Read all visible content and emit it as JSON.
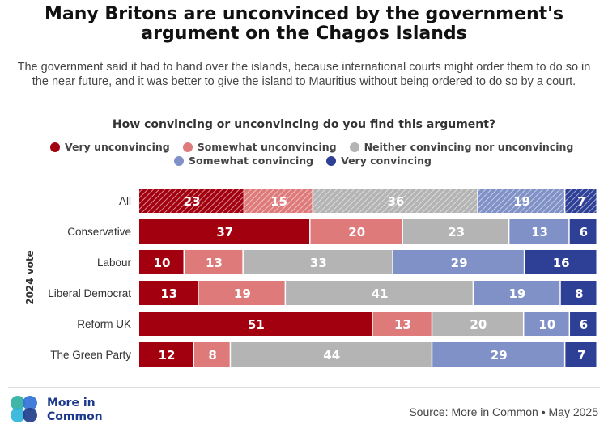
{
  "title_line1": "Many Britons are unconvinced by the government's",
  "title_line2": "argument on the Chagos Islands",
  "subtitle": "The government said it had to hand over the islands, because international courts might order them to do so in the near future, and it was better to give the island to Mauritius without being ordered to do so by a court.",
  "question": "How convincing or unconvincing do you find this argument?",
  "logo": {
    "line1": "More in",
    "line2": "Common"
  },
  "source": "Source: More in Common • May 2025",
  "colors": {
    "very_unconvincing": "#a3000f",
    "somewhat_unconvincing": "#de7a7a",
    "neither": "#b4b4b4",
    "somewhat_convincing": "#8091c7",
    "very_convincing": "#2e3f96"
  },
  "chart_data": {
    "type": "bar",
    "orientation": "horizontal-stacked-100",
    "title": "How convincing or unconvincing do you find this argument?",
    "ylabel": "2024 vote",
    "categories": [
      "All",
      "Conservative",
      "Labour",
      "Liberal Democrat",
      "Reform UK",
      "The Green Party"
    ],
    "series": [
      {
        "name": "Very unconvincing",
        "color": "#a3000f",
        "values": [
          23,
          37,
          10,
          13,
          51,
          12
        ]
      },
      {
        "name": "Somewhat unconvincing",
        "color": "#de7a7a",
        "values": [
          15,
          20,
          13,
          19,
          13,
          8
        ]
      },
      {
        "name": "Neither convincing nor unconvincing",
        "color": "#b4b4b4",
        "values": [
          36,
          23,
          33,
          41,
          20,
          44
        ]
      },
      {
        "name": "Somewhat convincing",
        "color": "#8091c7",
        "values": [
          19,
          13,
          29,
          19,
          10,
          29
        ]
      },
      {
        "name": "Very convincing",
        "color": "#2e3f96",
        "values": [
          7,
          6,
          16,
          8,
          6,
          7
        ]
      }
    ],
    "hatched_categories": [
      "All"
    ],
    "legend_position": "top"
  }
}
